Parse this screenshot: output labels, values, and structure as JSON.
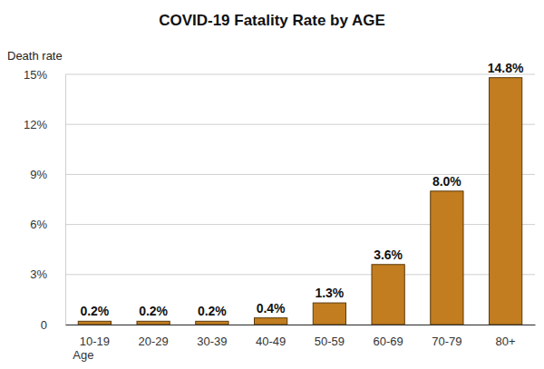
{
  "chart_data": {
    "type": "bar",
    "title": "COVID-19 Fatality Rate by AGE",
    "y_label": "Death rate",
    "x_label": "Age",
    "categories": [
      "10-19",
      "20-29",
      "30-39",
      "40-49",
      "50-59",
      "60-69",
      "70-79",
      "80+"
    ],
    "values": [
      0.2,
      0.2,
      0.2,
      0.4,
      1.3,
      3.6,
      8.0,
      14.8
    ],
    "value_labels": [
      "0.2%",
      "0.2%",
      "0.2%",
      "0.4%",
      "1.3%",
      "3.6%",
      "8.0%",
      "14.8%"
    ],
    "color": "#c17d1f",
    "ylim": [
      0,
      15
    ],
    "yticks": [
      0,
      {
        "value": 3,
        "label": "3%"
      },
      {
        "value": 6,
        "label": "6%"
      },
      {
        "value": 9,
        "label": "9%"
      },
      {
        "value": 12,
        "label": "12%"
      },
      {
        "value": 15,
        "label": "15%"
      }
    ],
    "grid": true,
    "data_labels": true
  }
}
